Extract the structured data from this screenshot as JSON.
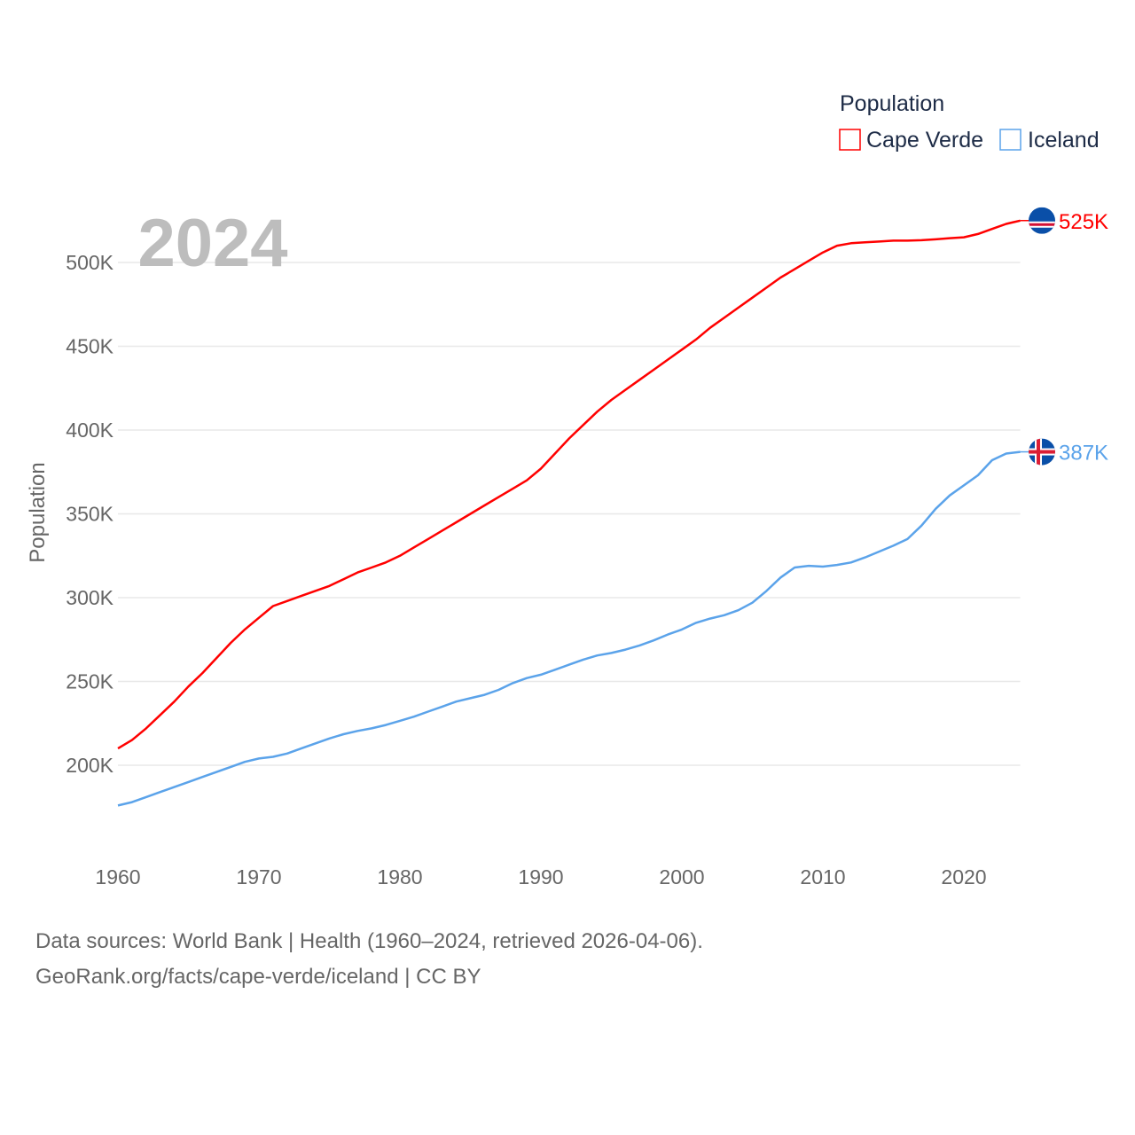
{
  "chart_data": {
    "type": "line",
    "year_label": "2024",
    "ylabel": "Population",
    "xlabel": "",
    "legend": {
      "title": "Population",
      "placement": "top-right"
    },
    "xlim": [
      1960,
      2024
    ],
    "ylim": [
      150000,
      530000
    ],
    "x_ticks": [
      1960,
      1970,
      1980,
      1990,
      2000,
      2010,
      2020
    ],
    "x_tick_labels": [
      "1960",
      "1970",
      "1980",
      "1990",
      "2000",
      "2010",
      "2020"
    ],
    "y_ticks": [
      200000,
      250000,
      300000,
      350000,
      400000,
      450000,
      500000
    ],
    "y_tick_labels": [
      "200K",
      "250K",
      "300K",
      "350K",
      "400K",
      "450K",
      "500K"
    ],
    "grid": true,
    "x_start": 1960,
    "series": [
      {
        "name": "Cape Verde",
        "color": "#ff0000",
        "end_label": "525K",
        "flag": "cape-verde-flag",
        "values": [
          210,
          215,
          222,
          230,
          238,
          247,
          255,
          264,
          273,
          281,
          288,
          295,
          298,
          301,
          304,
          307,
          311,
          315,
          318,
          321,
          325,
          330,
          335,
          340,
          345,
          350,
          355,
          360,
          365,
          370,
          377,
          386,
          395,
          403,
          411,
          418,
          424,
          430,
          436,
          442,
          448,
          454,
          461,
          467,
          473,
          479,
          485,
          491,
          496,
          501,
          506,
          510,
          511.5,
          512,
          512.5,
          513,
          513,
          513.3,
          513.8,
          514.5,
          515,
          517,
          520,
          523,
          525
        ]
      },
      {
        "name": "Iceland",
        "color": "#5ba3ea",
        "end_label": "387K",
        "flag": "iceland-flag",
        "values": [
          176,
          178,
          181,
          184,
          187,
          190,
          193,
          196,
          199,
          202,
          204,
          205,
          207,
          210,
          213,
          216,
          218.5,
          220.5,
          222,
          224,
          226.5,
          229,
          232,
          235,
          238,
          240,
          242,
          245,
          249,
          252,
          254,
          257,
          260,
          263,
          265.5,
          267,
          269,
          271.5,
          274.5,
          278,
          281,
          285,
          287.5,
          289.5,
          292.5,
          297,
          304,
          312,
          318,
          319,
          318.5,
          319.5,
          321,
          324,
          327.5,
          331,
          335,
          343,
          353,
          361,
          367,
          373,
          382,
          386,
          387
        ]
      }
    ],
    "value_unit": "thousands"
  },
  "footer": {
    "line1": "Data sources: World Bank | Health (1960–2024, retrieved 2026-04-06).",
    "line2": "GeoRank.org/facts/cape-verde/iceland | CC BY"
  }
}
